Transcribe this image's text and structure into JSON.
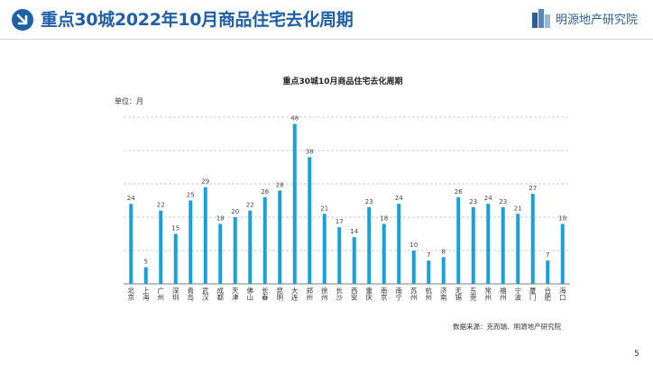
{
  "slide": {
    "title": "重点30城2022年10月商品住宅去化周期",
    "brand": "明源地产研究院",
    "page_number": "5"
  },
  "colors": {
    "accent": "#1e5fa8",
    "bar": "#1aa0d8",
    "grid": "#bfbfbf"
  },
  "chart_data": {
    "type": "bar",
    "title": "重点30城10月商品住宅去化周期",
    "unit_label": "单位：月",
    "source": "数据来源：克而瑞、明源地产研究院",
    "xlabel": "",
    "ylabel": "",
    "ylim": [
      0,
      50
    ],
    "grid": true,
    "categories": [
      "北京",
      "上海",
      "广州",
      "深圳",
      "青岛",
      "武汉",
      "成都",
      "天津",
      "佛山",
      "长春",
      "昆明",
      "大连",
      "郑州",
      "徐州",
      "长沙",
      "西安",
      "重庆",
      "南京",
      "南宁",
      "苏州",
      "杭州",
      "济南",
      "无锡",
      "东莞",
      "常州",
      "福州",
      "宁波",
      "厦门",
      "合肥",
      "海口"
    ],
    "values": [
      24,
      5,
      22,
      15,
      25,
      29,
      18,
      20,
      22,
      26,
      28,
      48,
      38,
      21,
      17,
      14,
      23,
      18,
      24,
      10,
      7,
      8,
      26,
      23,
      24,
      23,
      21,
      27,
      7,
      18
    ]
  }
}
